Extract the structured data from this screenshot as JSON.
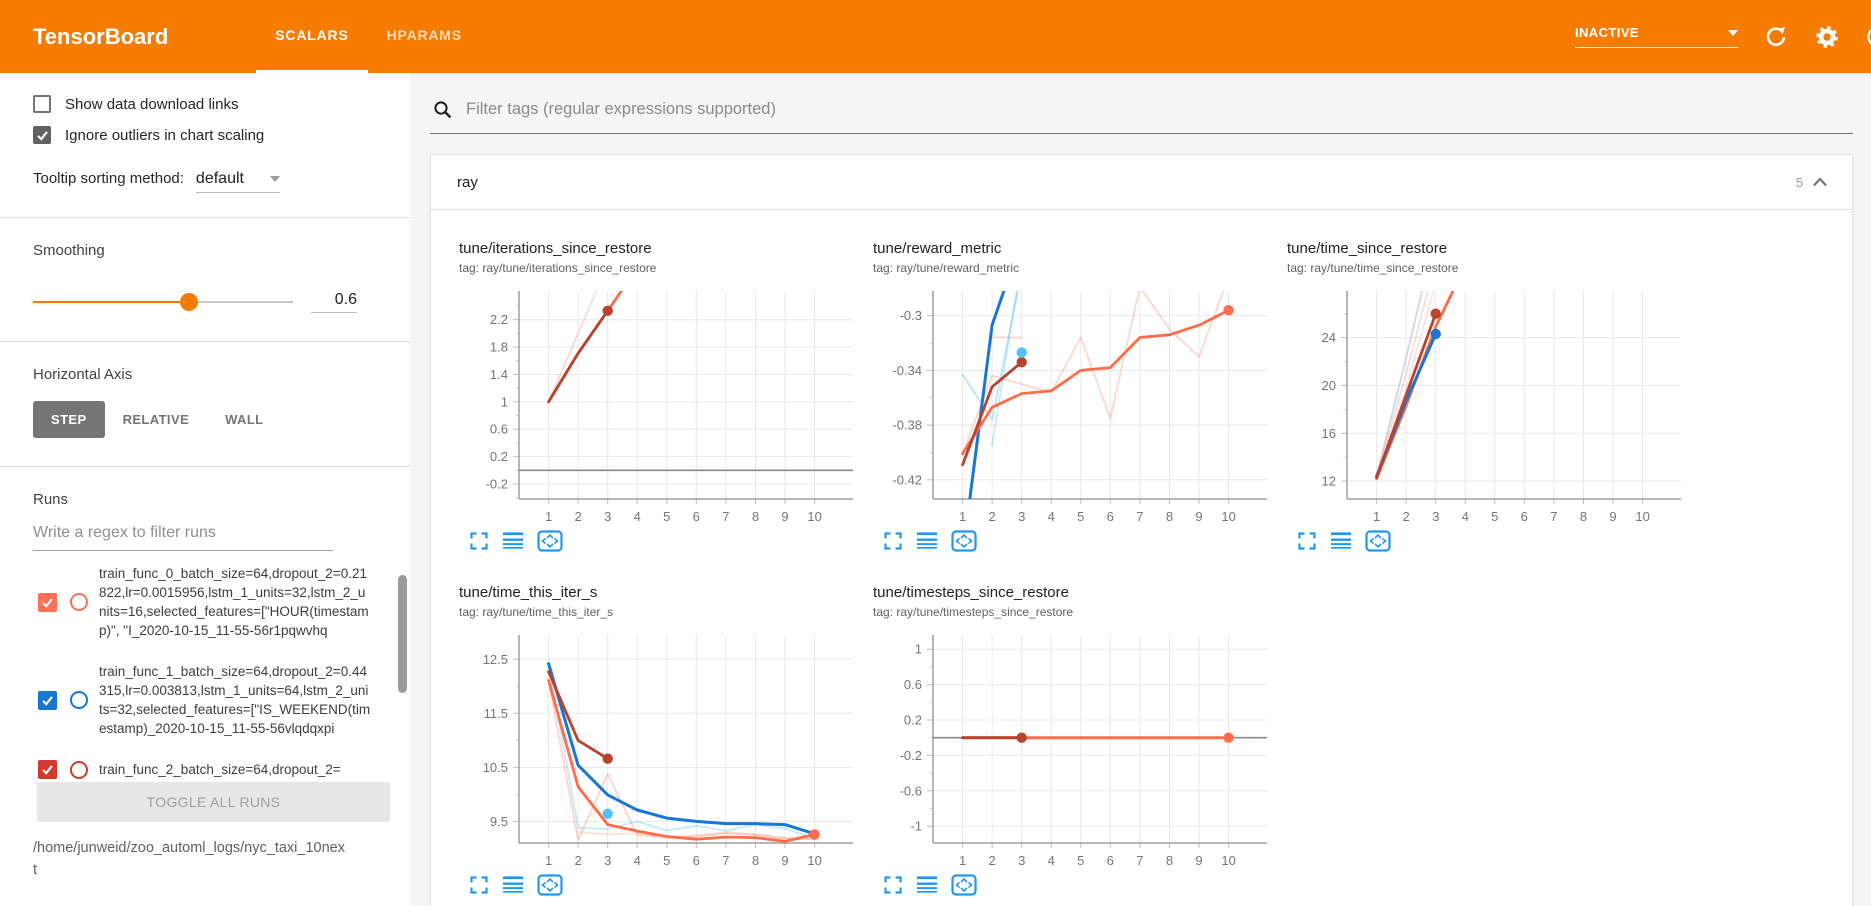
{
  "header": {
    "title": "TensorBoard",
    "tabs": [
      {
        "label": "SCALARS",
        "active": true
      },
      {
        "label": "HPARAMS",
        "active": false
      }
    ],
    "status_dropdown": "INACTIVE",
    "icons": [
      "dropdown-caret-icon",
      "refresh-icon",
      "settings-gear-icon",
      "help-icon"
    ],
    "bg_color": "#f57c00"
  },
  "sidebar": {
    "checkboxes": [
      {
        "label": "Show data download links",
        "checked": false
      },
      {
        "label": "Ignore outliers in chart scaling",
        "checked": true
      }
    ],
    "tooltip_sorting": {
      "label": "Tooltip sorting method:",
      "value": "default"
    },
    "smoothing": {
      "label": "Smoothing",
      "value": "0.6",
      "percent": 60
    },
    "horizontal_axis": {
      "label": "Horizontal Axis",
      "options": [
        "STEP",
        "RELATIVE",
        "WALL"
      ],
      "selected": "STEP"
    },
    "runs": {
      "label": "Runs",
      "filter_placeholder": "Write a regex to filter runs",
      "items": [
        {
          "text": "train_func_0_batch_size=64,dropout_2=0.21822,lr=0.0015956,lstm_1_units=32,lstm_2_units=16,selected_features=[\"HOUR(timestamp)\", \"I_2020-10-15_11-55-56r1pqwvhq",
          "checked": true,
          "color": "#ff7057"
        },
        {
          "text": "train_func_1_batch_size=64,dropout_2=0.44315,lr=0.003813,lstm_1_units=64,lstm_2_units=32,selected_features=[\"IS_WEEKEND(timestamp)_2020-10-15_11-55-56vlqdqxpi",
          "checked": true,
          "color": "#1976d2"
        },
        {
          "text": "train_func_2_batch_size=64,dropout_2=",
          "checked": true,
          "color": "#d13b2e"
        }
      ],
      "toggle_all_label": "TOGGLE ALL RUNS"
    },
    "log_path": "/home/junweid/zoo_automl_logs/nyc_taxi_10next"
  },
  "main": {
    "filter_placeholder": "Filter tags (regular expressions supported)",
    "section": {
      "name": "ray",
      "count": "5"
    }
  },
  "colors": {
    "accent_orange": "#f57c00",
    "run_orange": "#ff6d4a",
    "run_dark_red": "#b8432c",
    "run_blue": "#1976d2",
    "run_light_blue": "#4fc3f7",
    "tool_icon_blue": "#2196f3"
  },
  "chart_data": [
    {
      "type": "line",
      "title": "tune/iterations_since_restore",
      "tag": "tag: ray/tune/iterations_since_restore",
      "xticks": [
        1,
        2,
        3,
        4,
        5,
        6,
        7,
        8,
        9,
        10
      ],
      "xlim": [
        0,
        11.3
      ],
      "yticks": [
        -0.2,
        0.2,
        0.6,
        1,
        1.4,
        1.8,
        2.2
      ],
      "ylim": [
        -0.42,
        2.62
      ],
      "zero_line": 0,
      "series": [
        {
          "name": "run0 raw",
          "color": "#ff6d4a",
          "opacity": 0.25,
          "width": 1.8,
          "points": [
            [
              1,
              1
            ],
            [
              2,
              2
            ],
            [
              3,
              3
            ]
          ]
        },
        {
          "name": "run orange smoothed",
          "color": "#ff6d4a",
          "width": 2.8,
          "points": [
            [
              1,
              1
            ],
            [
              2,
              1.71
            ],
            [
              3,
              2.33
            ],
            [
              4,
              2.96
            ]
          ]
        },
        {
          "name": "run0 smoothed",
          "color": "#b8432c",
          "width": 2.8,
          "dot": true,
          "points": [
            [
              1,
              1
            ],
            [
              2,
              1.71
            ],
            [
              3,
              2.33
            ]
          ]
        }
      ]
    },
    {
      "type": "line",
      "title": "tune/reward_metric",
      "tag": "tag: ray/tune/reward_metric",
      "xticks": [
        1,
        2,
        3,
        4,
        5,
        6,
        7,
        8,
        9,
        10
      ],
      "xlim": [
        0,
        11.3
      ],
      "yticks": [
        -0.42,
        -0.38,
        -0.34,
        -0.3
      ],
      "ylim": [
        -0.434,
        -0.282
      ],
      "series": [
        {
          "name": "orange raw",
          "color": "#ff6d4a",
          "opacity": 0.28,
          "width": 1.8,
          "points": [
            [
              1,
              -0.401
            ],
            [
              2,
              -0.344
            ],
            [
              3,
              -0.35
            ],
            [
              4,
              -0.356
            ],
            [
              5,
              -0.316
            ],
            [
              6,
              -0.375
            ],
            [
              7,
              -0.279
            ],
            [
              8,
              -0.31
            ],
            [
              9,
              -0.33
            ],
            [
              10,
              -0.272
            ]
          ]
        },
        {
          "name": "orange raw 2",
          "color": "#ff6d4a",
          "opacity": 0.28,
          "width": 1.8,
          "points": [
            [
              2,
              -0.316
            ],
            [
              3,
              -0.316
            ]
          ]
        },
        {
          "name": "light blue raw",
          "color": "#4fc3f7",
          "opacity": 0.4,
          "width": 1.8,
          "points": [
            [
              1,
              -0.343
            ],
            [
              2,
              -0.376
            ],
            [
              3,
              -0.268
            ]
          ]
        },
        {
          "name": "light blue raw 2",
          "color": "#4fc3f7",
          "opacity": 0.35,
          "width": 1.8,
          "points": [
            [
              2,
              -0.395
            ],
            [
              3,
              -0.258
            ]
          ]
        },
        {
          "name": "run1 smoothed",
          "color": "#1976d2",
          "width": 3,
          "points": [
            [
              1.15,
              -0.45
            ],
            [
              2,
              -0.307
            ],
            [
              2.62,
              -0.268
            ]
          ]
        },
        {
          "name": "orange smoothed",
          "color": "#ff6d4a",
          "width": 2.8,
          "dot": true,
          "points": [
            [
              1,
              -0.401
            ],
            [
              2,
              -0.367
            ],
            [
              3,
              -0.357
            ],
            [
              4,
              -0.355
            ],
            [
              5,
              -0.34
            ],
            [
              6,
              -0.338
            ],
            [
              7,
              -0.316
            ],
            [
              8,
              -0.314
            ],
            [
              9,
              -0.307
            ],
            [
              10,
              -0.296
            ]
          ]
        },
        {
          "name": "run0 smoothed",
          "color": "#b8432c",
          "width": 2.8,
          "dot": true,
          "points": [
            [
              1,
              -0.409
            ],
            [
              2,
              -0.352
            ],
            [
              3,
              -0.334
            ]
          ]
        }
      ],
      "dots": [
        {
          "x": 3,
          "y": -0.327,
          "color": "#4fc3f7"
        }
      ]
    },
    {
      "type": "line",
      "title": "tune/time_since_restore",
      "tag": "tag: ray/tune/time_since_restore",
      "xticks": [
        1,
        2,
        3,
        4,
        5,
        6,
        7,
        8,
        9,
        10
      ],
      "xlim": [
        0,
        11.3
      ],
      "yticks": [
        12,
        16,
        20,
        24
      ],
      "ylim": [
        10.5,
        27.9
      ],
      "series": [
        {
          "name": "blue raw",
          "color": "#9fa8da",
          "opacity": 0.5,
          "width": 1.8,
          "points": [
            [
              1,
              12.4
            ],
            [
              2,
              22.3
            ],
            [
              2.6,
              28.5
            ]
          ]
        },
        {
          "name": "pink raw",
          "color": "#ff6d4a",
          "opacity": 0.25,
          "width": 1.8,
          "points": [
            [
              1,
              12.3
            ],
            [
              2,
              21.0
            ],
            [
              2.8,
              28.5
            ]
          ]
        },
        {
          "name": "pink raw 2",
          "color": "#ff6d4a",
          "opacity": 0.2,
          "width": 1.8,
          "points": [
            [
              1,
              12.3
            ],
            [
              2,
              19.8
            ],
            [
              3.0,
              28.5
            ]
          ]
        },
        {
          "name": "orange smoothed",
          "color": "#ff6d4a",
          "width": 2.8,
          "points": [
            [
              1,
              12.2
            ],
            [
              2,
              18.3
            ],
            [
              3,
              24.9
            ],
            [
              3.7,
              28.5
            ]
          ]
        },
        {
          "name": "run1 smoothed",
          "color": "#1976d2",
          "width": 3,
          "dot": true,
          "points": [
            [
              1,
              12.4
            ],
            [
              2,
              18.7
            ],
            [
              3,
              24.3
            ]
          ]
        },
        {
          "name": "run0 smoothed",
          "color": "#b8432c",
          "width": 2.8,
          "dot": true,
          "points": [
            [
              1,
              12.3
            ],
            [
              2,
              19.2
            ],
            [
              3,
              26.0
            ]
          ]
        }
      ]
    },
    {
      "type": "line",
      "title": "tune/time_this_iter_s",
      "tag": "tag: ray/tune/time_this_iter_s",
      "xticks": [
        1,
        2,
        3,
        4,
        5,
        6,
        7,
        8,
        9,
        10
      ],
      "xlim": [
        0,
        11.3
      ],
      "yticks": [
        9.5,
        10.5,
        11.5,
        12.5
      ],
      "ylim": [
        9.1,
        12.95
      ],
      "series": [
        {
          "name": "pink raw",
          "color": "#ff6d4a",
          "opacity": 0.3,
          "width": 1.8,
          "points": [
            [
              1,
              12.1
            ],
            [
              2,
              9.15
            ],
            [
              3,
              10.38
            ],
            [
              4,
              9.25
            ],
            [
              5,
              9.2
            ],
            [
              6,
              9.22
            ],
            [
              7,
              9.28
            ],
            [
              8,
              9.25
            ],
            [
              9,
              9.18
            ],
            [
              10,
              9.17
            ]
          ]
        },
        {
          "name": "light blue raw",
          "color": "#4fc3f7",
          "opacity": 0.35,
          "width": 1.8,
          "points": [
            [
              1,
              12.42
            ],
            [
              2,
              9.38
            ],
            [
              3,
              9.36
            ],
            [
              4,
              9.5
            ],
            [
              5,
              9.33
            ],
            [
              6,
              9.42
            ],
            [
              7,
              9.33
            ],
            [
              8,
              9.44
            ],
            [
              9,
              9.37
            ],
            [
              10,
              9.18
            ]
          ]
        },
        {
          "name": "pink raw 2",
          "color": "#ff6d4a",
          "opacity": 0.22,
          "width": 1.8,
          "points": [
            [
              2,
              9.3
            ],
            [
              3,
              9.26
            ],
            [
              4,
              9.28
            ],
            [
              5,
              9.22
            ],
            [
              6,
              9.24
            ],
            [
              7,
              9.3
            ],
            [
              8,
              9.26
            ],
            [
              9,
              9.2
            ],
            [
              10,
              9.18
            ]
          ]
        },
        {
          "name": "run1 smoothed",
          "color": "#1976d2",
          "width": 3,
          "points": [
            [
              1,
              12.42
            ],
            [
              2,
              10.54
            ],
            [
              3,
              9.99
            ],
            [
              4,
              9.71
            ],
            [
              5,
              9.56
            ],
            [
              6,
              9.5
            ],
            [
              7,
              9.46
            ],
            [
              8,
              9.46
            ],
            [
              9,
              9.44
            ],
            [
              10,
              9.27
            ]
          ]
        },
        {
          "name": "orange smoothed",
          "color": "#ff6d4a",
          "width": 2.8,
          "dot": true,
          "points": [
            [
              1,
              12.11
            ],
            [
              2,
              10.14
            ],
            [
              3,
              9.44
            ],
            [
              4,
              9.32
            ],
            [
              5,
              9.22
            ],
            [
              6,
              9.17
            ],
            [
              7,
              9.21
            ],
            [
              8,
              9.2
            ],
            [
              9,
              9.13
            ],
            [
              10,
              9.26
            ]
          ]
        },
        {
          "name": "run0 smoothed",
          "color": "#b8432c",
          "width": 2.8,
          "dot": true,
          "points": [
            [
              1,
              12.27
            ],
            [
              2,
              11.0
            ],
            [
              3,
              10.66
            ]
          ]
        }
      ],
      "dots": [
        {
          "x": 3,
          "y": 9.64,
          "color": "#4fc3f7"
        }
      ]
    },
    {
      "type": "line",
      "title": "tune/timesteps_since_restore",
      "tag": "tag: ray/tune/timesteps_since_restore",
      "xticks": [
        1,
        2,
        3,
        4,
        5,
        6,
        7,
        8,
        9,
        10
      ],
      "xlim": [
        0,
        11.3
      ],
      "yticks": [
        -1,
        -0.6,
        -0.2,
        0.2,
        0.6,
        1
      ],
      "ylim": [
        -1.19,
        1.16
      ],
      "zero_line": 0,
      "series": [
        {
          "name": "orange smoothed",
          "color": "#ff6d4a",
          "width": 3,
          "dot": true,
          "points": [
            [
              1,
              0
            ],
            [
              10,
              0
            ]
          ]
        },
        {
          "name": "run0 smoothed",
          "color": "#b8432c",
          "width": 2.8,
          "dot": true,
          "points": [
            [
              1,
              0
            ],
            [
              3,
              0
            ]
          ]
        }
      ]
    }
  ]
}
